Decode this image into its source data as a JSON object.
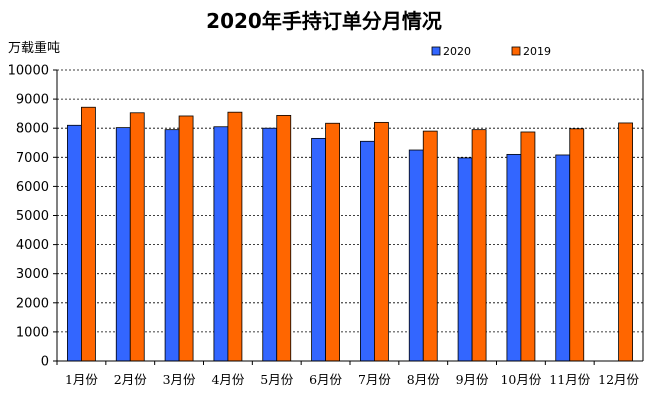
{
  "chart_data": {
    "type": "bar",
    "title": "2020年手持订单分月情况",
    "ylabel": "万载重吨",
    "xlabel": "",
    "categories": [
      "1月份",
      "2月份",
      "3月份",
      "4月份",
      "5月份",
      "6月份",
      "7月份",
      "8月份",
      "9月份",
      "10月份",
      "11月份",
      "12月份"
    ],
    "series": [
      {
        "name": "2020",
        "color": "#3366ff",
        "values": [
          8100,
          8020,
          7950,
          8050,
          8000,
          7650,
          7550,
          7250,
          6980,
          7100,
          7080,
          null
        ]
      },
      {
        "name": "2019",
        "color": "#ff6600",
        "values": [
          8720,
          8530,
          8420,
          8550,
          8440,
          8170,
          8200,
          7900,
          7950,
          7870,
          7980,
          8180
        ]
      }
    ],
    "ylim": [
      0,
      10000
    ],
    "yticks": [
      0,
      1000,
      2000,
      3000,
      4000,
      5000,
      6000,
      7000,
      8000,
      9000,
      10000
    ],
    "grid": "horizontal-dashed",
    "legend_position": "top-right"
  }
}
